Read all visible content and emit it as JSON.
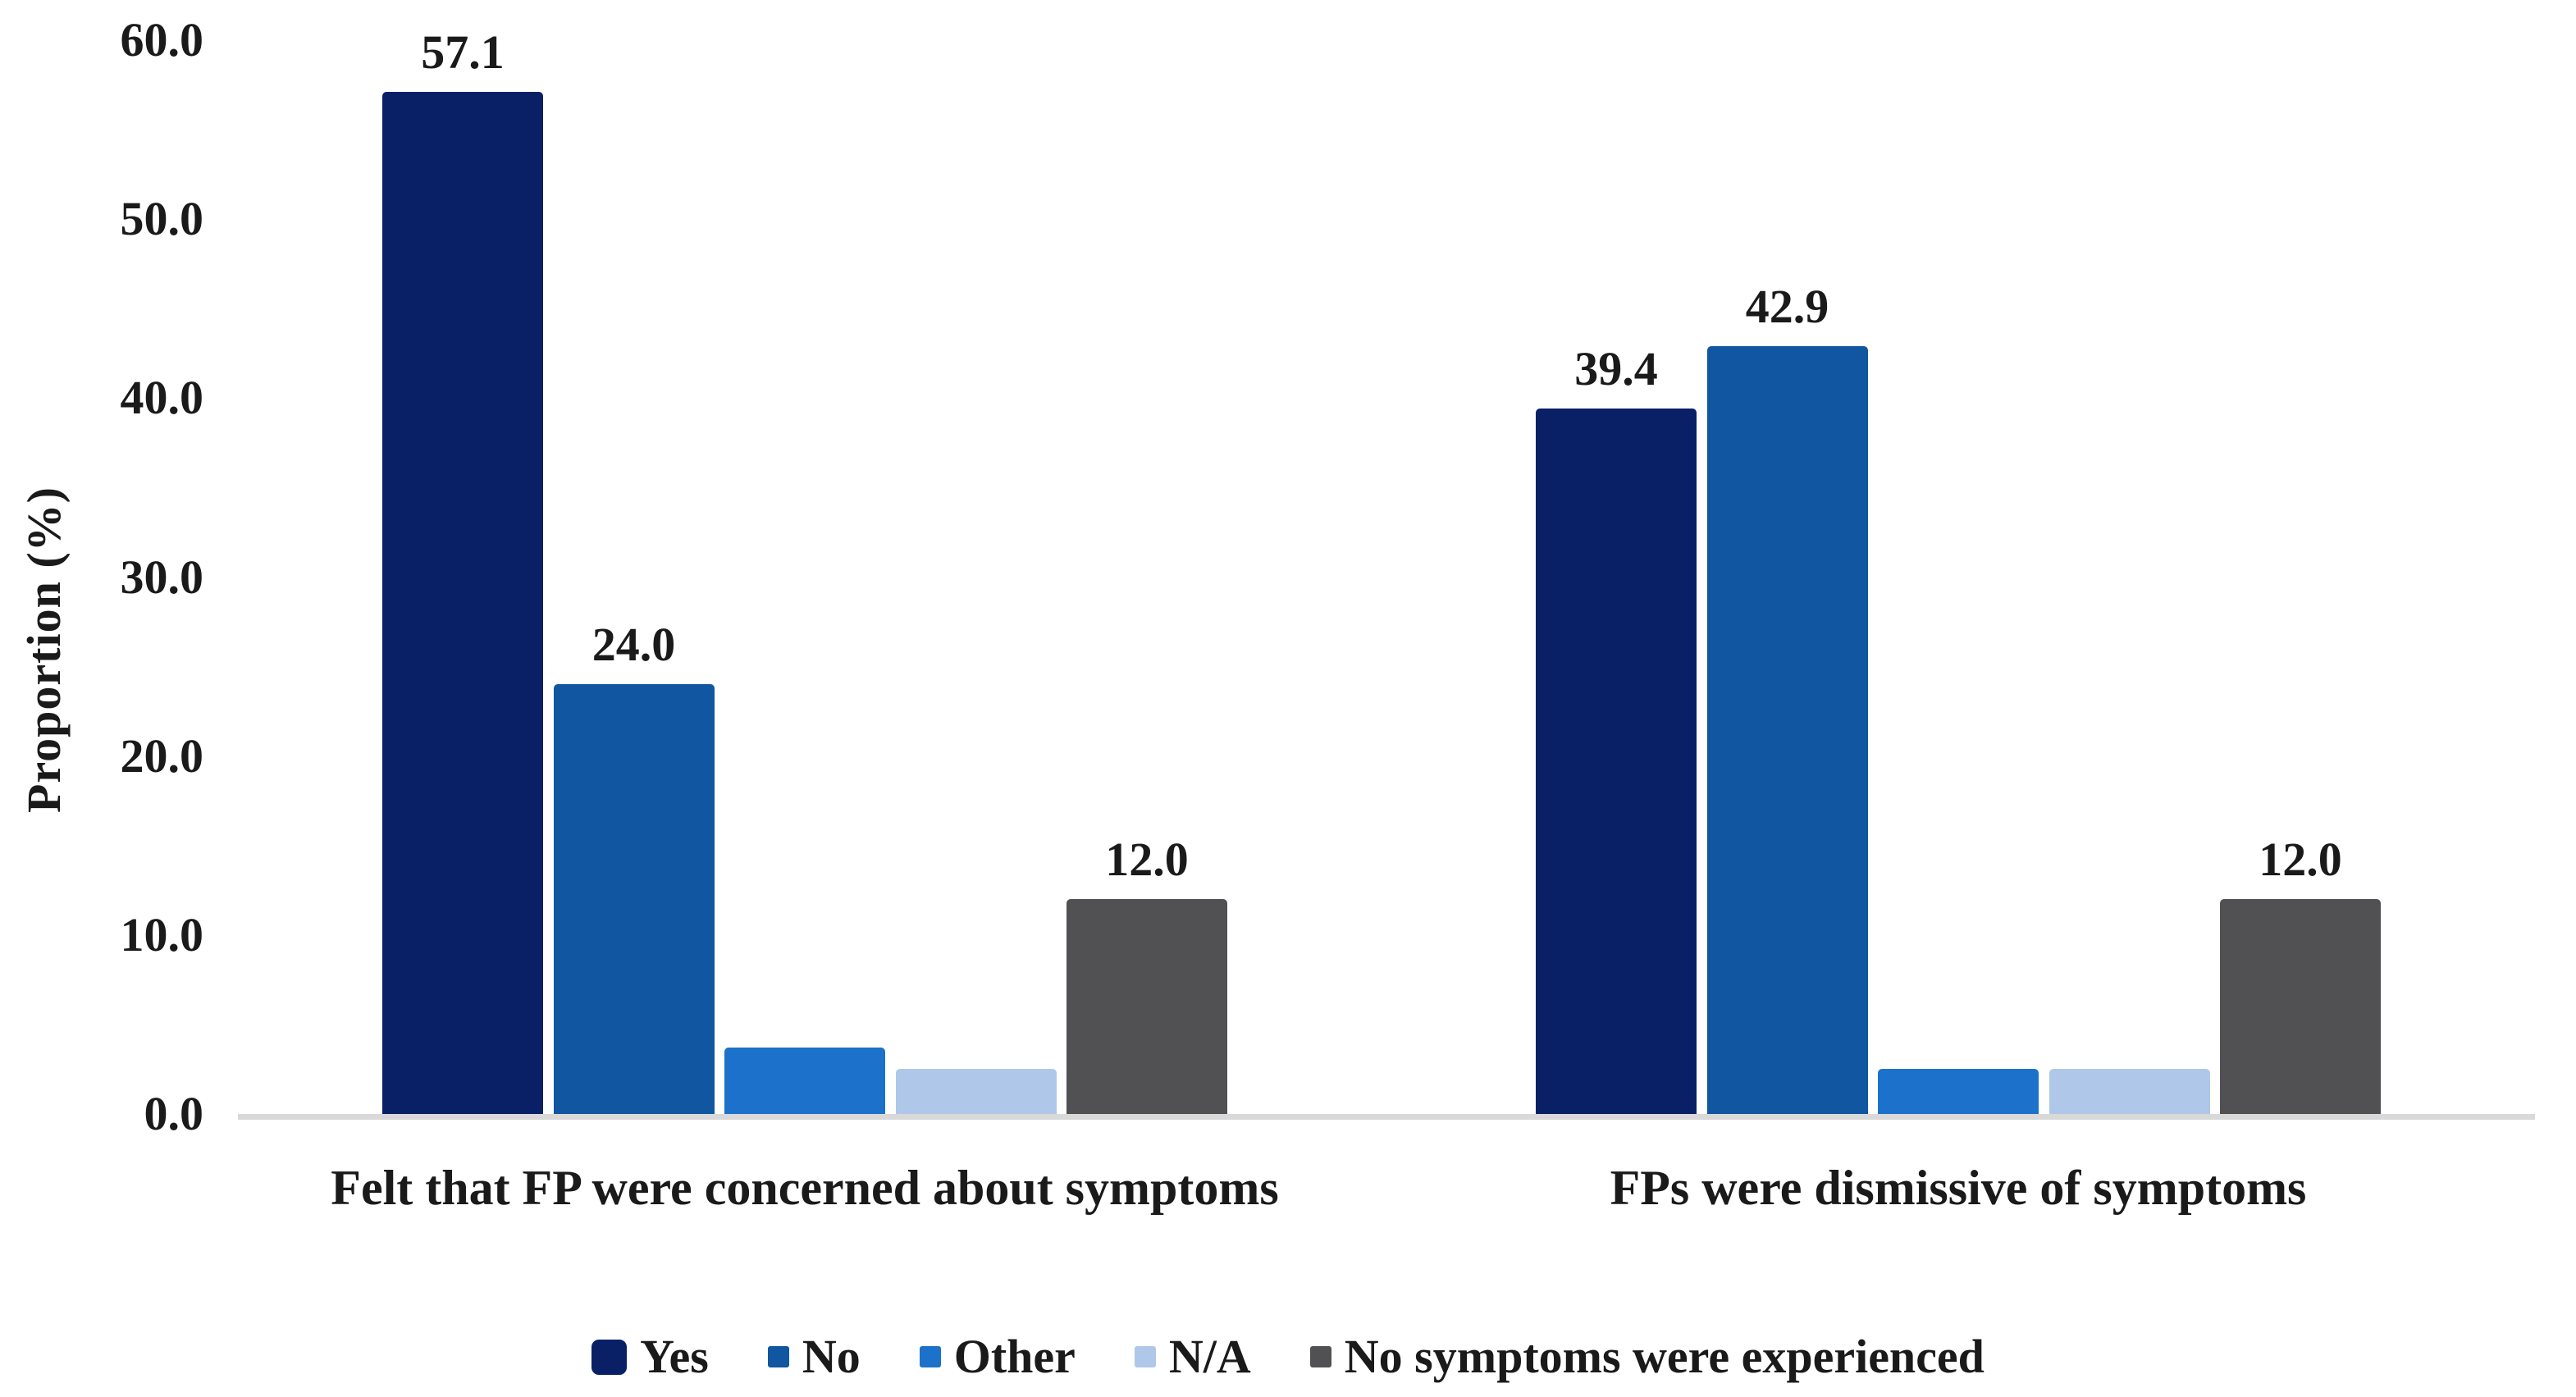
{
  "chart_data": {
    "type": "bar",
    "title": "",
    "xlabel": "",
    "ylabel": "Proportion (%)",
    "ylim": [
      0,
      60
    ],
    "yticks": [
      0,
      10,
      20,
      30,
      40,
      50,
      60
    ],
    "ytick_labels": [
      "0.0",
      "10.0",
      "20.0",
      "30.0",
      "40.0",
      "50.0",
      "60.0"
    ],
    "grid": false,
    "legend_position": "bottom",
    "categories": [
      "Felt that FP were concerned about symptoms",
      "FPs were dismissive of symptoms"
    ],
    "series": [
      {
        "name": "Yes",
        "color": "#0a2066",
        "values": [
          57.1,
          39.4
        ],
        "data_labels": [
          "57.1",
          "39.4"
        ]
      },
      {
        "name": "No",
        "color": "#1056a0",
        "values": [
          24.0,
          42.9
        ],
        "data_labels": [
          "24.0",
          "42.9"
        ]
      },
      {
        "name": "Other",
        "color": "#1c71ca",
        "values": [
          3.7,
          2.5
        ],
        "data_labels": [
          null,
          null
        ]
      },
      {
        "name": "N/A",
        "color": "#afc7e8",
        "values": [
          2.5,
          2.5
        ],
        "data_labels": [
          null,
          null
        ]
      },
      {
        "name": "No symptoms were experienced",
        "color": "#515153",
        "values": [
          12.0,
          12.0
        ],
        "data_labels": [
          "12.0",
          "12.0"
        ]
      }
    ],
    "axis_line_color": "#d9d9d9",
    "text_color": "#1a1a1a"
  }
}
